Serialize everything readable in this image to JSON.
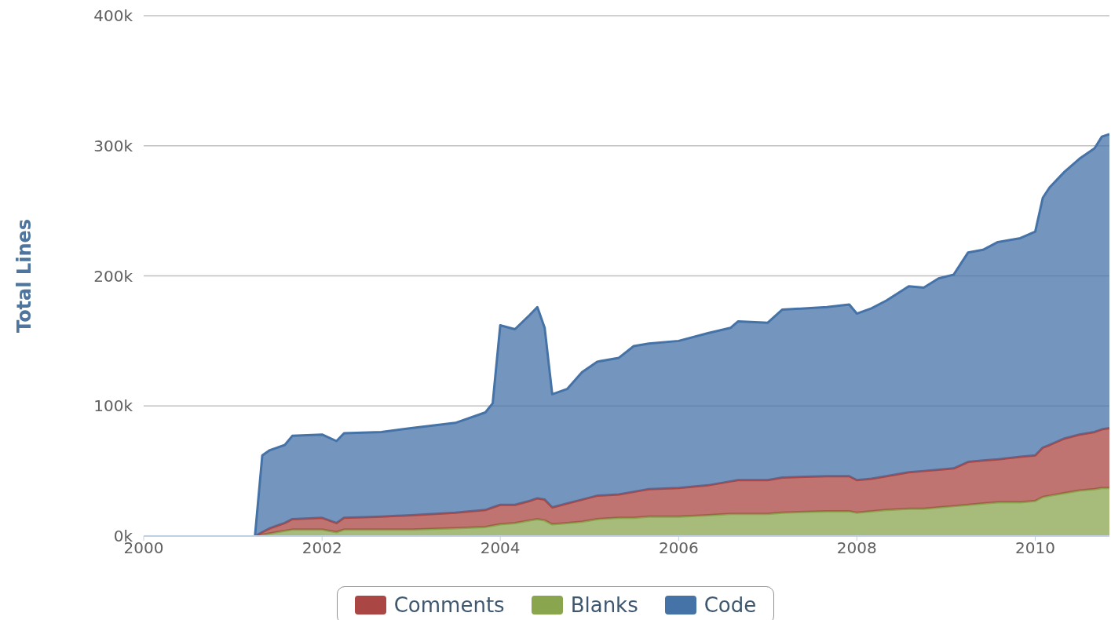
{
  "chart_data": {
    "type": "area",
    "stacked": true,
    "ylabel": "Total Lines",
    "x": [
      "2001-04",
      "2001-05",
      "2001-06",
      "2001-07",
      "2001-08",
      "2001-09",
      "2002-01",
      "2002-03",
      "2002-04",
      "2002-09",
      "2003-01",
      "2003-07",
      "2003-11",
      "2003-12",
      "2004-01",
      "2004-03",
      "2004-05",
      "2004-06",
      "2004-07",
      "2004-08",
      "2004-10",
      "2004-12",
      "2005-02",
      "2005-05",
      "2005-07",
      "2005-09",
      "2006-01",
      "2006-05",
      "2006-08",
      "2006-09",
      "2007-01",
      "2007-03",
      "2007-09",
      "2007-12",
      "2008-01",
      "2008-03",
      "2008-05",
      "2008-08",
      "2008-10",
      "2008-12",
      "2009-02",
      "2009-04",
      "2009-06",
      "2009-08",
      "2009-11",
      "2010-01",
      "2010-02",
      "2010-03",
      "2010-05",
      "2010-07",
      "2010-09",
      "2010-10",
      "2010-11"
    ],
    "series": [
      {
        "name": "Blanks",
        "color": "#89a54e",
        "values": [
          0,
          1000,
          2000,
          3000,
          4000,
          5000,
          5000,
          3000,
          5000,
          5000,
          5000,
          6000,
          7000,
          8000,
          9000,
          10000,
          12000,
          13000,
          12000,
          9000,
          10000,
          11000,
          13000,
          14000,
          14000,
          15000,
          15000,
          16000,
          17000,
          17000,
          17000,
          18000,
          19000,
          19000,
          18000,
          19000,
          20000,
          21000,
          21000,
          22000,
          23000,
          24000,
          25000,
          26000,
          26000,
          27000,
          30000,
          31000,
          33000,
          35000,
          36000,
          37000,
          37000
        ]
      },
      {
        "name": "Comments",
        "color": "#aa4643",
        "values": [
          0,
          2000,
          4000,
          5000,
          6000,
          8000,
          9000,
          7000,
          9000,
          10000,
          11000,
          12000,
          13000,
          14000,
          15000,
          14000,
          15000,
          16000,
          16000,
          13000,
          15000,
          17000,
          18000,
          18000,
          20000,
          21000,
          22000,
          23000,
          25000,
          26000,
          26000,
          27000,
          27000,
          27000,
          25000,
          25000,
          26000,
          28000,
          29000,
          29000,
          29000,
          33000,
          33000,
          33000,
          35000,
          35000,
          38000,
          39000,
          42000,
          43000,
          44000,
          45000,
          46000
        ]
      },
      {
        "name": "Code",
        "color": "#4572a7",
        "values": [
          0,
          59000,
          60000,
          60000,
          60000,
          64000,
          64000,
          63000,
          65000,
          65000,
          67000,
          69000,
          75000,
          80000,
          138000,
          135000,
          143000,
          147000,
          132000,
          87000,
          88000,
          98000,
          103000,
          105000,
          112000,
          112000,
          113000,
          117000,
          118000,
          122000,
          121000,
          129000,
          130000,
          132000,
          128000,
          131000,
          135000,
          143000,
          141000,
          147000,
          149000,
          161000,
          162000,
          167000,
          168000,
          172000,
          192000,
          198000,
          205000,
          212000,
          218000,
          225000,
          226000
        ]
      }
    ],
    "xlim": [
      "2000",
      "2010-11"
    ],
    "xticks": [
      "2000",
      "2002",
      "2004",
      "2006",
      "2008",
      "2010"
    ],
    "ylim": [
      0,
      400000
    ],
    "yticks": [
      {
        "value": 0,
        "label": "0k"
      },
      {
        "value": 100000,
        "label": "100k"
      },
      {
        "value": 200000,
        "label": "200k"
      },
      {
        "value": 300000,
        "label": "300k"
      },
      {
        "value": 400000,
        "label": "400k"
      }
    ],
    "grid": "y",
    "legend": "bottom"
  }
}
